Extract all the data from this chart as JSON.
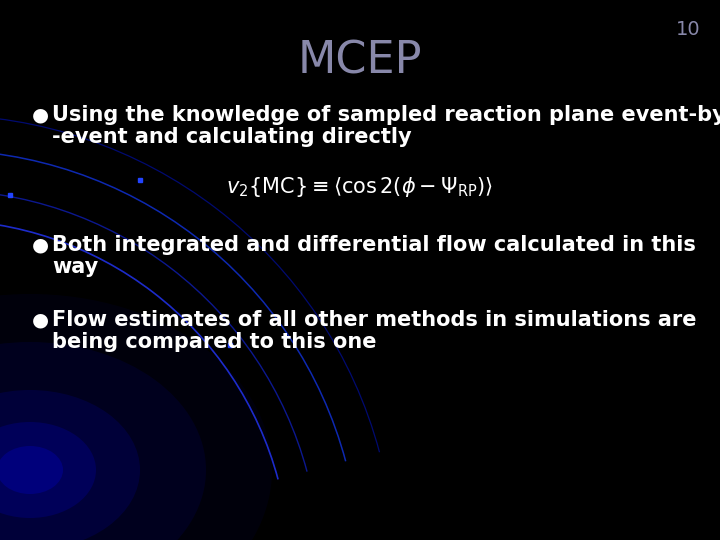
{
  "title": "MCEP",
  "slide_number": "10",
  "title_color": "#8888aa",
  "title_fontsize": 32,
  "background_color": "#000000",
  "text_color": "#ffffff",
  "bullet_color": "#ffffff",
  "slide_number_color": "#8888aa",
  "bullet1_line1": "Using the knowledge of sampled reaction plane event-by",
  "bullet1_line2": "-event and calculating directly",
  "formula": "$v_2\\{\\mathrm{MC}\\} \\equiv \\langle \\cos 2(\\phi - \\Psi_{\\mathrm{RP}}) \\rangle$",
  "bullet2_line1": "Both integrated and differential flow calculated in this",
  "bullet2_line2": "way",
  "bullet3_line1": "Flow estimates of all other methods in simulations are",
  "bullet3_line2": "being compared to this one",
  "body_fontsize": 15,
  "formula_fontsize": 15,
  "slide_number_fontsize": 14,
  "arc_color1": "#2233dd",
  "arc_color2": "#1122bb",
  "arc_color3": "#3344cc",
  "arc_color4": "#1111aa",
  "glow_color": "#0000bb"
}
